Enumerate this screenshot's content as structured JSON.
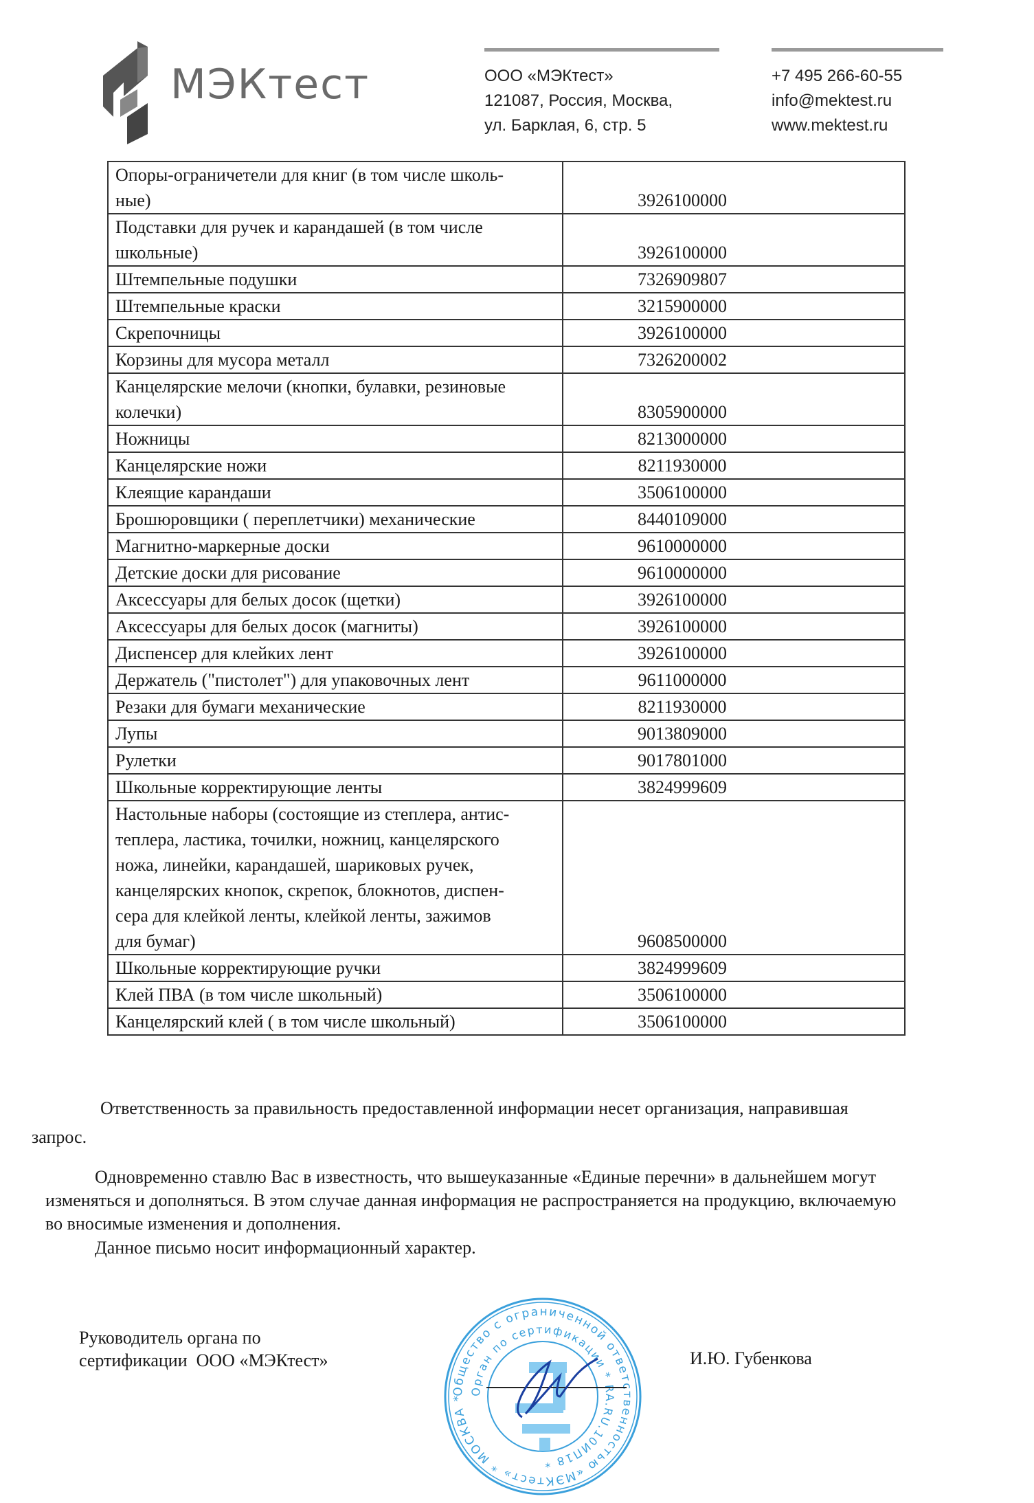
{
  "header": {
    "logo_text": "МЭКтест",
    "company": "ООО «МЭКтест»",
    "address_line1": "121087, Россия, Москва,",
    "address_line2": "ул. Барклая, 6, стр. 5",
    "phone": "+7 495 266-60-55",
    "email": "info@mektest.ru",
    "website": "www.mektest.ru"
  },
  "table": {
    "rows": [
      {
        "name": "Опоры-ограничетели для книг (в том числе школь-\nные)",
        "code": "3926100000"
      },
      {
        "name": "Подставки для ручек и карандашей (в том числе\nшкольные)",
        "code": "3926100000"
      },
      {
        "name": "Штемпельные подушки",
        "code": "7326909807"
      },
      {
        "name": "Штемпельные краски",
        "code": "3215900000"
      },
      {
        "name": "Скрепочницы",
        "code": "3926100000"
      },
      {
        "name": "Корзины для мусора металл",
        "code": "7326200002"
      },
      {
        "name": "Канцелярские мелочи (кнопки, булавки, резиновые\nколечки)",
        "code": "8305900000"
      },
      {
        "name": "Ножницы",
        "code": "8213000000"
      },
      {
        "name": "Канцелярские ножи",
        "code": "8211930000"
      },
      {
        "name": "Клеящие карандаши",
        "code": "3506100000"
      },
      {
        "name": "Брошюровщики ( переплетчики) механические",
        "code": "8440109000"
      },
      {
        "name": "Магнитно-маркерные доски",
        "code": "9610000000"
      },
      {
        "name": "Детские доски для рисование",
        "code": "9610000000"
      },
      {
        "name": "Аксессуары для белых досок (щетки)",
        "code": "3926100000"
      },
      {
        "name": "Аксессуары для белых досок (магниты)",
        "code": "3926100000"
      },
      {
        "name": "Диспенсер для клейких лент",
        "code": "3926100000"
      },
      {
        "name": "Держатель (\"пистолет\") для упаковочных лент",
        "code": "9611000000"
      },
      {
        "name": "Резаки для бумаги механические",
        "code": "8211930000"
      },
      {
        "name": "Лупы",
        "code": "9013809000"
      },
      {
        "name": "Рулетки",
        "code": "9017801000"
      },
      {
        "name": "Школьные корректирующие ленты",
        "code": "3824999609"
      },
      {
        "name": "Настольные наборы (состоящие из степлера, антис-\nтеплера, ластика, точилки, ножниц, канцелярского\nножа, линейки, карандашей, шариковых ручек,\nканцелярских кнопок, скрепок, блокнотов, диспен-\nсера для клейкой ленты, клейкой ленты, зажимов\nдля бумаг)",
        "code": "9608500000"
      },
      {
        "name": "Школьные корректирующие ручки",
        "code": "3824999609"
      },
      {
        "name": "Клей ПВА (в том числе школьный)",
        "code": "3506100000"
      },
      {
        "name": "Канцелярский клей ( в том числе школьный)",
        "code": "3506100000"
      }
    ]
  },
  "body": {
    "p1_line1": "Ответственность за правильность предоставленной информации несет организация, направившая",
    "p1_line2": "запрос.",
    "p2_line1": "Одновременно ставлю Вас в известность, что вышеуказанные «Единые перечни» в дальнейшем могут",
    "p2_line2": "изменяться и дополняться. В этом случае данная информация не распространяется на продукцию, включаемую",
    "p2_line3": "во вносимые изменения и дополнения.",
    "p3": "Данное письмо носит информационный характер."
  },
  "signature": {
    "position_line1": "Руководитель органа по",
    "position_line2": "сертификации  ООО «МЭКтест»",
    "name": "И.Ю. Губенкова"
  },
  "stamp": {
    "outer_text": "Общество с ограниченной ответственностью «МЭКтест» * МОСКВА *",
    "inner_text": "Орган по сертификации * RA.RU.10ИП18 *",
    "color": "#3aa0dc"
  }
}
